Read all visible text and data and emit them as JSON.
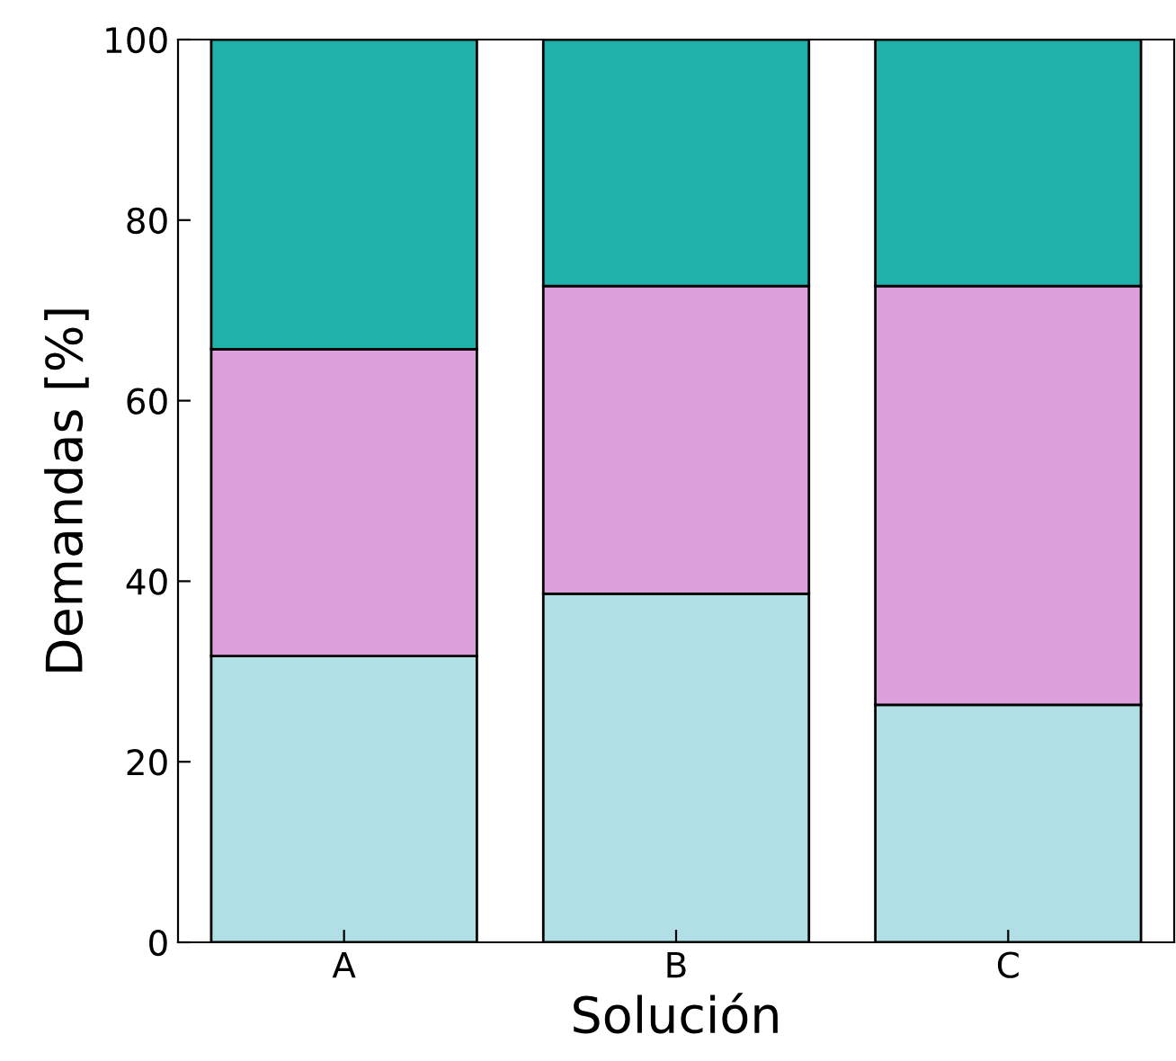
{
  "chart_data": {
    "type": "bar",
    "stacked": true,
    "xlabel": "Solución",
    "ylabel": "Demandas [%]",
    "categories": [
      "A",
      "B",
      "C"
    ],
    "series": [
      {
        "color": "#b0e0e6",
        "values": [
          31.7,
          38.6,
          26.3
        ]
      },
      {
        "color": "#dda0dd",
        "values": [
          34.0,
          34.1,
          46.4
        ]
      },
      {
        "color": "#20b2aa",
        "values": [
          34.3,
          27.3,
          27.3
        ]
      }
    ],
    "ylim": [
      0,
      100
    ],
    "yticks": [
      0,
      20,
      40,
      60,
      80,
      100
    ],
    "grid": false,
    "legend": false
  }
}
